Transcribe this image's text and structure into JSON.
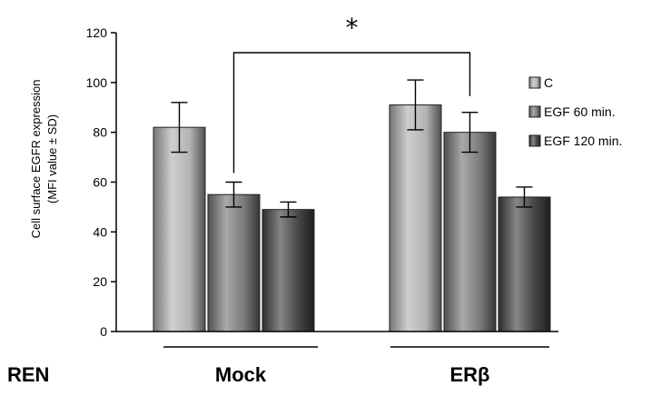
{
  "chart_data": {
    "type": "bar",
    "panel_label": "REN",
    "categories": [
      "Mock",
      "ERβ"
    ],
    "series": [
      {
        "name": "C",
        "values": [
          82,
          91
        ],
        "errors": [
          10,
          10
        ],
        "color": "#b4b4b4"
      },
      {
        "name": "EGF 60 min.",
        "values": [
          55,
          80
        ],
        "errors": [
          5,
          8
        ],
        "color": "#7a7a7a"
      },
      {
        "name": "EGF 120 min.",
        "values": [
          49,
          54
        ],
        "errors": [
          3,
          4
        ],
        "color": "#454545"
      }
    ],
    "ylabel": [
      "Cell surface EGFR expression",
      "(MFI value ± SD)"
    ],
    "ylim": [
      0,
      120
    ],
    "yticks": [
      "0",
      "20",
      "40",
      "60",
      "80",
      "100",
      "120"
    ],
    "grid": false,
    "legend_position": "right",
    "annotation": {
      "text": "*",
      "from": "Mock / EGF 60 min.",
      "to": "ERβ / EGF 60 min."
    }
  }
}
